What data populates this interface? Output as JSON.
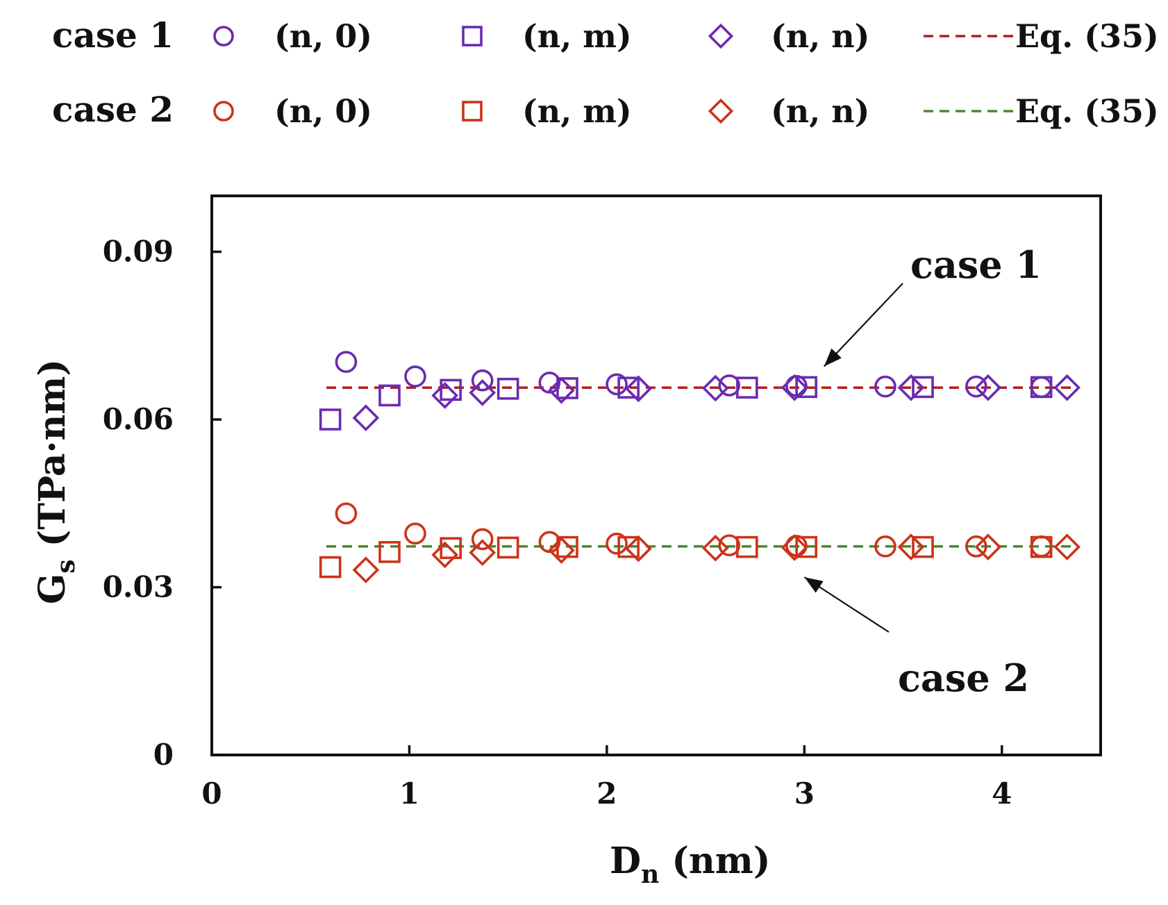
{
  "chart_data": {
    "type": "scatter",
    "title": "",
    "xlabel": "D",
    "xlabel_sub": "n",
    "xlabel_unit": "(nm)",
    "ylabel": "G",
    "ylabel_sub": "s",
    "ylabel_unit": "(TPa·nm)",
    "xlim": [
      0,
      4.5
    ],
    "ylim": [
      0,
      0.1
    ],
    "xticks": [
      0,
      1,
      2,
      3,
      4
    ],
    "xtick_labels": [
      "0",
      "1",
      "2",
      "3",
      "4"
    ],
    "yticks": [
      0,
      0.03,
      0.06,
      0.09
    ],
    "ytick_labels": [
      "0",
      "0.03",
      "0.06",
      "0.09"
    ],
    "grid": false,
    "legend_position": "top",
    "legend": {
      "case1_label": "case 1",
      "case2_label": "case 2",
      "items": [
        {
          "case": "case1",
          "series": "(n, 0)",
          "marker": "circle",
          "label": "(n, 0)"
        },
        {
          "case": "case1",
          "series": "(n, m)",
          "marker": "square",
          "label": "(n, m)"
        },
        {
          "case": "case1",
          "series": "(n, n)",
          "marker": "diamond",
          "label": "(n, n)"
        },
        {
          "case": "case1",
          "series": "Eq. (35)",
          "marker": "dashed-line",
          "label": "Eq. (35)"
        },
        {
          "case": "case2",
          "series": "(n, 0)",
          "marker": "circle",
          "label": "(n, 0)"
        },
        {
          "case": "case2",
          "series": "(n, m)",
          "marker": "square",
          "label": "(n, m)"
        },
        {
          "case": "case2",
          "series": "(n, n)",
          "marker": "diamond",
          "label": "(n, n)"
        },
        {
          "case": "case2",
          "series": "Eq. (35)",
          "marker": "dashed-line",
          "label": "Eq. (35)"
        }
      ]
    },
    "colors": {
      "case1": "#6a2bb0",
      "case2": "#cc3318",
      "eq_case1": "#b31b1b",
      "eq_case2": "#4a8a2a",
      "axis": "#111111"
    },
    "series": [
      {
        "name": "case 1 (n, 0)",
        "case": "case1",
        "marker": "circle",
        "x": [
          0.68,
          1.03,
          1.37,
          1.71,
          2.05,
          2.62,
          2.96,
          3.41,
          3.87,
          4.2
        ],
        "y": [
          0.0703,
          0.0677,
          0.067,
          0.0666,
          0.0663,
          0.0661,
          0.066,
          0.0659,
          0.0659,
          0.0658
        ]
      },
      {
        "name": "case 1 (n, m)",
        "case": "case1",
        "marker": "square",
        "x": [
          0.6,
          0.9,
          1.21,
          1.5,
          1.8,
          2.11,
          2.71,
          3.01,
          3.6,
          4.2
        ],
        "y": [
          0.06,
          0.0643,
          0.0653,
          0.0655,
          0.0656,
          0.0657,
          0.0657,
          0.0658,
          0.0658,
          0.0658
        ]
      },
      {
        "name": "case 1 (n, n)",
        "case": "case1",
        "marker": "diamond",
        "x": [
          0.78,
          1.18,
          1.37,
          1.77,
          2.16,
          2.55,
          2.95,
          3.54,
          3.93,
          4.33
        ],
        "y": [
          0.0603,
          0.0643,
          0.0648,
          0.0652,
          0.0655,
          0.0656,
          0.0657,
          0.0657,
          0.0657,
          0.0657
        ]
      },
      {
        "name": "case 2 (n, 0)",
        "case": "case2",
        "marker": "circle",
        "x": [
          0.68,
          1.03,
          1.37,
          1.71,
          2.05,
          2.62,
          2.96,
          3.41,
          3.87,
          4.2
        ],
        "y": [
          0.0432,
          0.0396,
          0.0386,
          0.0381,
          0.0378,
          0.0375,
          0.0374,
          0.0373,
          0.0373,
          0.0373
        ]
      },
      {
        "name": "case 2 (n, m)",
        "case": "case2",
        "marker": "square",
        "x": [
          0.6,
          0.9,
          1.21,
          1.5,
          1.8,
          2.11,
          2.71,
          3.01,
          3.6,
          4.2
        ],
        "y": [
          0.0336,
          0.0363,
          0.037,
          0.0371,
          0.0372,
          0.0372,
          0.0372,
          0.0372,
          0.0372,
          0.0372
        ]
      },
      {
        "name": "case 2 (n, n)",
        "case": "case2",
        "marker": "diamond",
        "x": [
          0.78,
          1.18,
          1.37,
          1.77,
          2.16,
          2.55,
          2.95,
          3.54,
          3.93,
          4.33
        ],
        "y": [
          0.0331,
          0.0358,
          0.0362,
          0.0366,
          0.0369,
          0.037,
          0.0371,
          0.0372,
          0.0372,
          0.0372
        ]
      }
    ],
    "lines": [
      {
        "name": "case 1 Eq. (35)",
        "case": "case1",
        "y": 0.0657,
        "x_range": [
          0.58,
          4.35
        ]
      },
      {
        "name": "case 2 Eq. (35)",
        "case": "case2",
        "y": 0.0373,
        "x_range": [
          0.58,
          4.35
        ]
      }
    ],
    "annotations": [
      {
        "text": "case 1",
        "arrow_to": {
          "x": 3.1,
          "y": 0.0695
        }
      },
      {
        "text": "case 2",
        "arrow_to": {
          "x": 3.0,
          "y": 0.0318
        }
      }
    ]
  }
}
